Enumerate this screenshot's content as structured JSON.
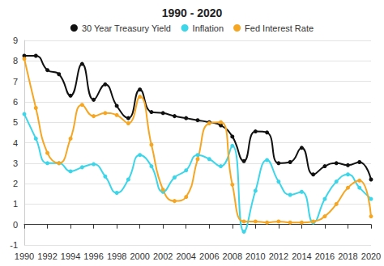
{
  "chart_data": {
    "type": "line",
    "title": "1990 - 2020",
    "x": [
      1990,
      1991,
      1992,
      1993,
      1994,
      1995,
      1996,
      1997,
      1998,
      1999,
      2000,
      2001,
      2002,
      2003,
      2004,
      2005,
      2006,
      2007,
      2008,
      2009,
      2010,
      2011,
      2012,
      2013,
      2014,
      2015,
      2016,
      2017,
      2018,
      2019,
      2020
    ],
    "series": [
      {
        "name": "30 Year Treasury Yield",
        "color": "#111111",
        "values": [
          8.25,
          8.25,
          7.55,
          7.35,
          6.3,
          7.85,
          6.1,
          6.85,
          5.8,
          5.2,
          6.6,
          5.5,
          5.45,
          5.3,
          5.2,
          5.1,
          5.0,
          4.85,
          4.3,
          3.1,
          4.55,
          4.5,
          3.0,
          3.05,
          3.75,
          2.45,
          2.85,
          3.0,
          2.9,
          3.05,
          2.2
        ]
      },
      {
        "name": "Inflation",
        "color": "#3dd5e8",
        "values": [
          5.4,
          4.2,
          3.0,
          3.0,
          2.6,
          2.8,
          2.95,
          2.35,
          1.55,
          2.2,
          3.4,
          2.85,
          1.6,
          2.3,
          2.65,
          3.4,
          3.2,
          2.85,
          3.85,
          -0.35,
          1.65,
          3.15,
          2.1,
          1.45,
          1.6,
          0.1,
          1.25,
          2.1,
          2.45,
          1.8,
          1.25
        ]
      },
      {
        "name": "Fed Interest Rate",
        "color": "#f5a623",
        "values": [
          8.1,
          5.7,
          3.5,
          3.0,
          4.2,
          5.85,
          5.3,
          5.45,
          5.35,
          4.95,
          6.25,
          3.9,
          1.7,
          1.15,
          1.35,
          3.2,
          4.95,
          5.0,
          1.95,
          0.15,
          0.15,
          0.1,
          0.15,
          0.1,
          0.1,
          0.15,
          0.4,
          1.0,
          1.8,
          2.15,
          0.4
        ]
      }
    ],
    "xlim": [
      1990,
      2020
    ],
    "xticks": [
      1990,
      1992,
      1994,
      1996,
      1998,
      2000,
      2002,
      2004,
      2006,
      2008,
      2010,
      2012,
      2014,
      2016,
      2018,
      2020
    ],
    "ylim": [
      -1,
      9
    ],
    "yticks": [
      -1,
      0,
      1,
      2,
      3,
      4,
      5,
      6,
      7,
      8,
      9
    ],
    "grid": true,
    "legend": "top",
    "marker": "circle",
    "line_style": "smooth"
  }
}
